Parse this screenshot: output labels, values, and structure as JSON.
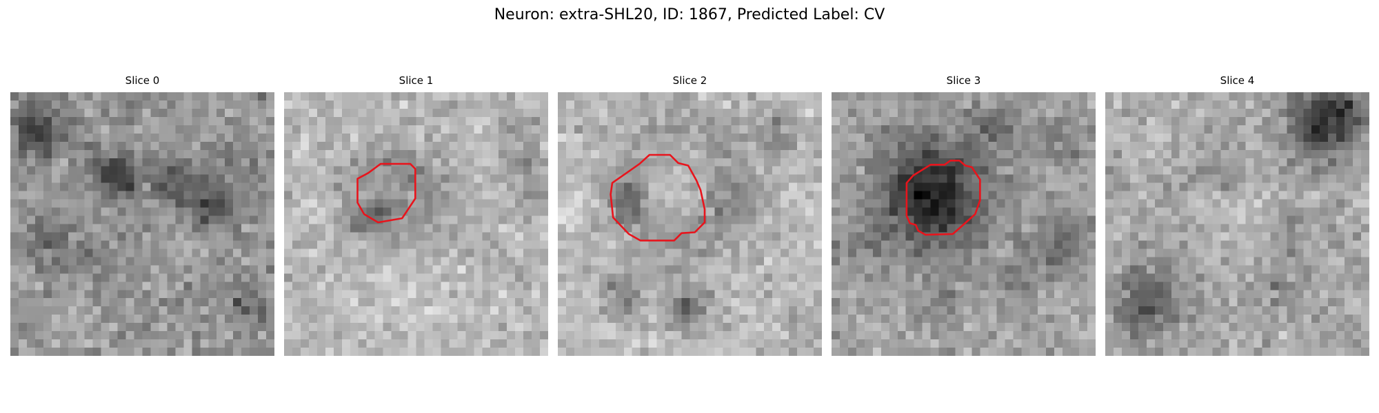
{
  "figure": {
    "title": "Neuron: extra-SHL20, ID: 1867, Predicted Label: CV"
  },
  "panels": [
    {
      "label": "Slice 0",
      "has_outline": false
    },
    {
      "label": "Slice 1",
      "has_outline": true
    },
    {
      "label": "Slice 2",
      "has_outline": true
    },
    {
      "label": "Slice 3",
      "has_outline": true
    },
    {
      "label": "Slice 4",
      "has_outline": false
    }
  ],
  "colors": {
    "outline": "#e8141c",
    "background": "#ffffff",
    "colormap": "grayscale"
  }
}
